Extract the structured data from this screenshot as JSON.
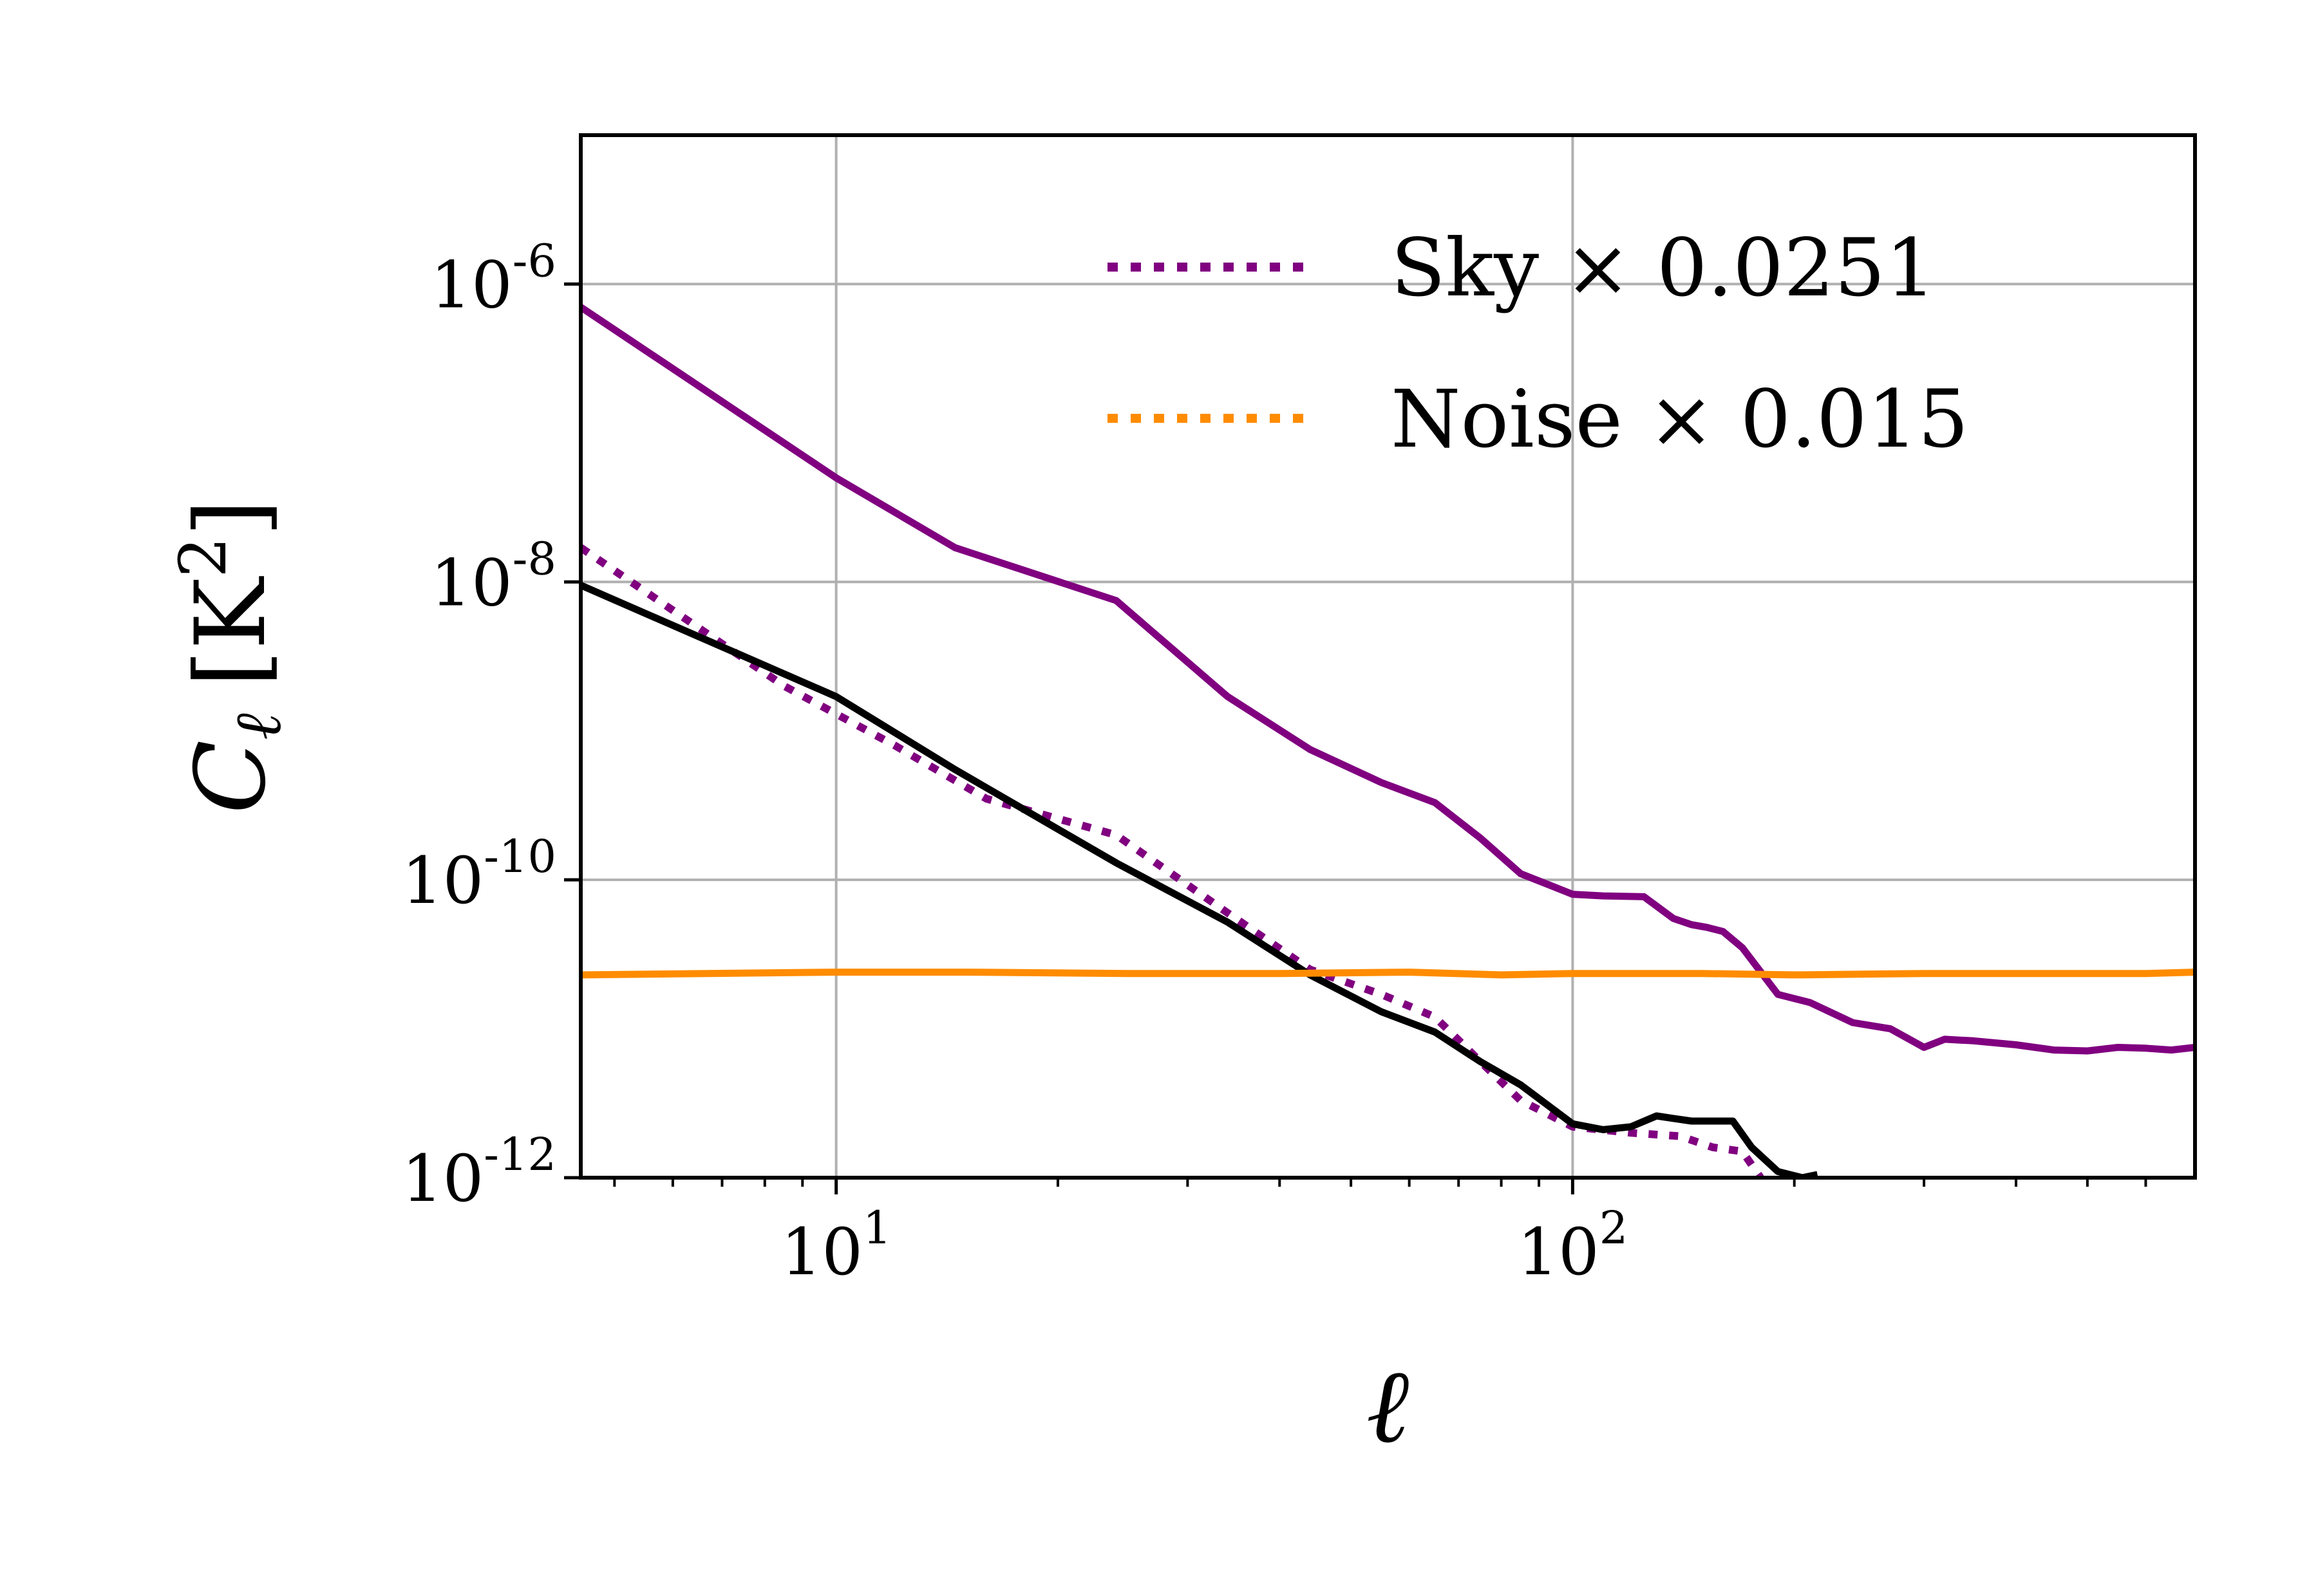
{
  "chart_data": {
    "type": "line",
    "title": "",
    "xlabel": "ℓ",
    "ylabel": {
      "symbol": "C",
      "subscript": "ℓ",
      "unit_open": "[K",
      "unit_exp": "2",
      "unit_close": "]"
    },
    "xscale": "log",
    "yscale": "log",
    "xlim": [
      4.5,
      700
    ],
    "ylim": [
      1e-12,
      1e-05
    ],
    "grid": true,
    "legend_placement": "top-right",
    "x_ticks": [
      {
        "value": 10,
        "base": "10",
        "exp": "1"
      },
      {
        "value": 100,
        "base": "10",
        "exp": "2"
      }
    ],
    "y_ticks": [
      {
        "value": 1e-06,
        "base": "10",
        "exp": "-6"
      },
      {
        "value": 1e-08,
        "base": "10",
        "exp": "-8"
      },
      {
        "value": 1e-10,
        "base": "10",
        "exp": "-10"
      },
      {
        "value": 1e-12,
        "base": "10",
        "exp": "-12"
      }
    ],
    "legend": [
      {
        "label": "Sky × 0.0251",
        "color": "#800080",
        "style": "dotted"
      },
      {
        "label": "Noise × 0.015",
        "color": "#ff8c00",
        "style": "dotted"
      }
    ],
    "series": [
      {
        "id": "sky-total",
        "color": "#800080",
        "style": "solid",
        "x": [
          4.5,
          10,
          14.5,
          24,
          34,
          44,
          55,
          65,
          75,
          85,
          100,
          110,
          125,
          137,
          145,
          152,
          160,
          170,
          190,
          210,
          240,
          270,
          300,
          320,
          350,
          400,
          450,
          500,
          550,
          600,
          650,
          700
        ],
        "y": [
          7e-07,
          5e-08,
          1.7e-08,
          7.5e-09,
          1.7e-09,
          7.5e-10,
          4.5e-10,
          3.3e-10,
          1.9e-10,
          1.1e-10,
          8e-11,
          7.8e-11,
          7.7e-11,
          5.5e-11,
          5e-11,
          4.8e-11,
          4.5e-11,
          3.5e-11,
          1.7e-11,
          1.5e-11,
          1.1e-11,
          1e-11,
          7.5e-12,
          8.5e-12,
          8.3e-12,
          7.8e-12,
          7.2e-12,
          7.1e-12,
          7.5e-12,
          7.4e-12,
          7.2e-12,
          7.5e-12
        ]
      },
      {
        "id": "sky-scaled",
        "color": "#800080",
        "style": "dotted",
        "x": [
          4.5,
          8.5,
          12,
          16,
          24,
          34,
          44,
          55,
          65,
          75,
          85,
          100,
          120,
          140,
          155,
          170,
          180
        ],
        "y": [
          1.7e-08,
          2e-09,
          8e-10,
          3.5e-10,
          2e-10,
          6e-11,
          2.5e-11,
          1.7e-11,
          1.2e-11,
          6e-12,
          3.3e-12,
          2.2e-12,
          2e-12,
          1.9e-12,
          1.6e-12,
          1.5e-12,
          1e-12
        ]
      },
      {
        "id": "signal",
        "color": "#000000",
        "style": "solid",
        "x": [
          4.5,
          10,
          14.5,
          24,
          34,
          44,
          55,
          65,
          75,
          85,
          100,
          110,
          120,
          130,
          137,
          145,
          155,
          165,
          175,
          190,
          205,
          215
        ],
        "y": [
          9.5e-09,
          1.7e-09,
          5.5e-10,
          1.3e-10,
          5.2e-11,
          2.3e-11,
          1.3e-11,
          9.5e-12,
          6e-12,
          4.2e-12,
          2.3e-12,
          2.1e-12,
          2.2e-12,
          2.6e-12,
          2.5e-12,
          2.4e-12,
          2.4e-12,
          2.4e-12,
          1.6e-12,
          1.1e-12,
          1e-12,
          1.05e-12
        ]
      },
      {
        "id": "noise",
        "color": "#ff8c00",
        "style": "solid",
        "x": [
          4.5,
          10,
          15,
          25,
          40,
          60,
          80,
          100,
          150,
          200,
          300,
          400,
          500,
          600,
          700
        ],
        "y": [
          2.3e-11,
          2.4e-11,
          2.4e-11,
          2.35e-11,
          2.35e-11,
          2.4e-11,
          2.3e-11,
          2.35e-11,
          2.35e-11,
          2.3e-11,
          2.35e-11,
          2.35e-11,
          2.35e-11,
          2.35e-11,
          2.4e-11
        ]
      }
    ]
  }
}
